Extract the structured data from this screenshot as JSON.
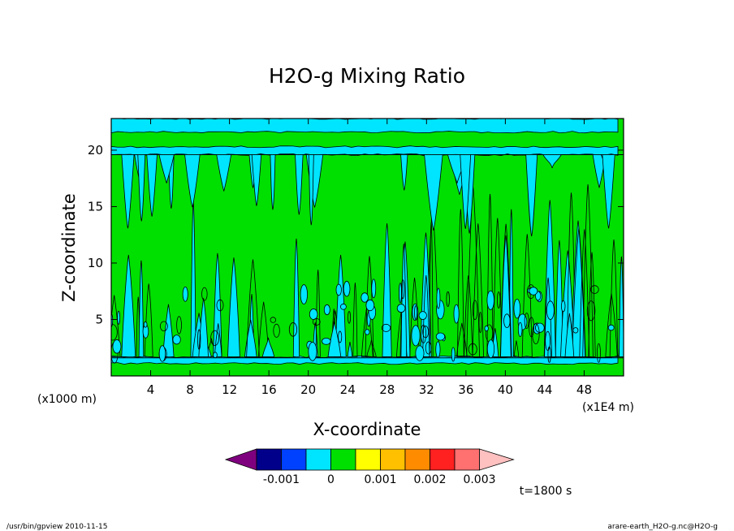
{
  "chart_data": {
    "type": "heatmap",
    "subtype": "filled-contour",
    "title": "H2O-g Mixing Ratio",
    "xlabel": "X-coordinate",
    "ylabel": "Z-coordinate",
    "x_units_left": "(x1000 m)",
    "x_units_right": "(x1E4 m)",
    "xlim": [
      0,
      52
    ],
    "ylim": [
      0,
      22.8
    ],
    "x_ticks": [
      "4",
      "8",
      "12",
      "16",
      "20",
      "24",
      "28",
      "32",
      "36",
      "40",
      "44",
      "48"
    ],
    "x_tick_values": [
      4,
      8,
      12,
      16,
      20,
      24,
      28,
      32,
      36,
      40,
      44,
      48
    ],
    "y_ticks": [
      "5",
      "10",
      "15",
      "20"
    ],
    "y_tick_values": [
      5,
      10,
      15,
      20
    ],
    "time_label": "t=1800 s",
    "footer_left": "/usr/bin/gpview   2010-11-15",
    "footer_right": "arare-earth_H2O-g.nc@H2O-g",
    "colorbar": {
      "colors": [
        "#7f007f",
        "#00008b",
        "#0040ff",
        "#00e5ff",
        "#00e000",
        "#ffff00",
        "#ffc000",
        "#ff8c00",
        "#ff2020",
        "#ff7070",
        "#ffc0c0"
      ],
      "tick_labels": [
        "-0.001",
        "0",
        "0.001",
        "0.002",
        "0.003"
      ],
      "tick_values": [
        -0.001,
        0,
        0.001,
        0.002,
        0.003
      ]
    },
    "field_levels": [
      {
        "name": "low",
        "color": "#00e5ff"
      },
      {
        "name": "high",
        "color": "#00e000"
      }
    ],
    "grid": false
  }
}
